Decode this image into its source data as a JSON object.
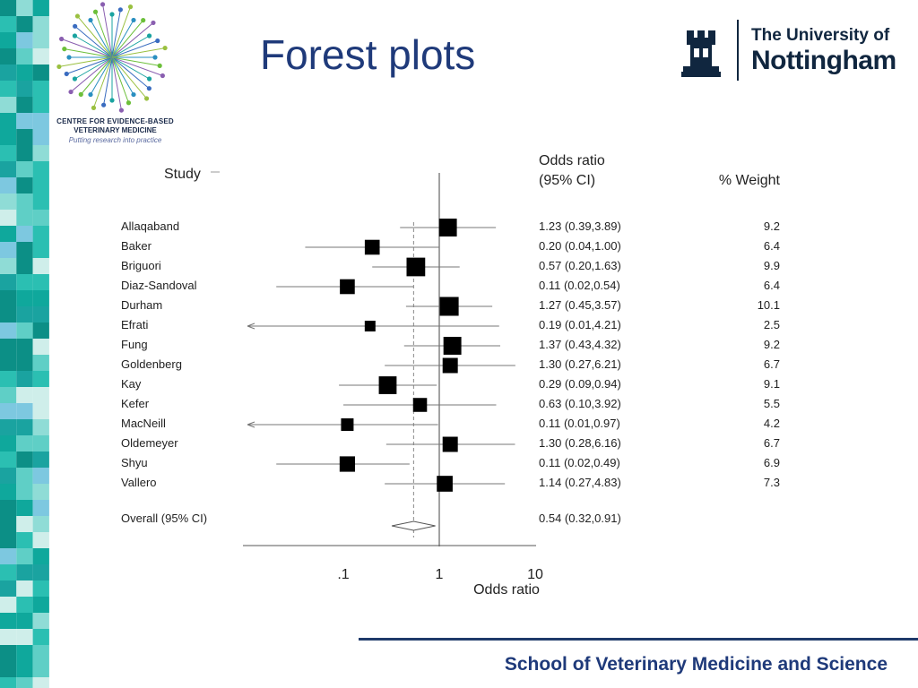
{
  "slide": {
    "title": "Forest plots",
    "footer": "School of Veterinary Medicine and Science"
  },
  "cebvm": {
    "line1": "CENTRE FOR EVIDENCE-BASED",
    "line2": "VETERINARY MEDICINE",
    "tagline": "Putting research into practice"
  },
  "university": {
    "line1": "The University of",
    "line2": "Nottingham"
  },
  "colors": {
    "title": "#1f3a7a",
    "stripe": [
      "#0fa89c",
      "#2bbfb2",
      "#5fcfc6",
      "#0c8f86",
      "#8fdcd6",
      "#1aa3a0",
      "#cfeeea",
      "#7dc8e0"
    ]
  },
  "chart_data": {
    "type": "forest",
    "header_study": "Study",
    "header_or_line1": "Odds ratio",
    "header_or_line2": "(95% CI)",
    "header_weight": "% Weight",
    "xlabel": "Odds ratio",
    "x_scale": "log",
    "xlim": [
      0.01,
      10
    ],
    "xticks": [
      {
        "value": 0.1,
        "label": ".1"
      },
      {
        "value": 1,
        "label": "1"
      },
      {
        "value": 10,
        "label": "10"
      }
    ],
    "null_line": 1,
    "studies": [
      {
        "name": "Allaqaband",
        "or": 1.23,
        "lo": 0.39,
        "hi": 3.89,
        "ci_text": "1.23 (0.39,3.89)",
        "weight": "9.2"
      },
      {
        "name": "Baker",
        "or": 0.2,
        "lo": 0.04,
        "hi": 1.0,
        "ci_text": "0.20 (0.04,1.00)",
        "weight": "6.4"
      },
      {
        "name": "Briguori",
        "or": 0.57,
        "lo": 0.2,
        "hi": 1.63,
        "ci_text": "0.57 (0.20,1.63)",
        "weight": "9.9"
      },
      {
        "name": "Diaz-Sandoval",
        "or": 0.11,
        "lo": 0.02,
        "hi": 0.54,
        "ci_text": "0.11 (0.02,0.54)",
        "weight": "6.4"
      },
      {
        "name": "Durham",
        "or": 1.27,
        "lo": 0.45,
        "hi": 3.57,
        "ci_text": "1.27 (0.45,3.57)",
        "weight": "10.1"
      },
      {
        "name": "Efrati",
        "or": 0.19,
        "lo": 0.01,
        "hi": 4.21,
        "ci_text": "0.19 (0.01,4.21)",
        "weight": "2.5"
      },
      {
        "name": "Fung",
        "or": 1.37,
        "lo": 0.43,
        "hi": 4.32,
        "ci_text": "1.37 (0.43,4.32)",
        "weight": "9.2"
      },
      {
        "name": "Goldenberg",
        "or": 1.3,
        "lo": 0.27,
        "hi": 6.21,
        "ci_text": "1.30 (0.27,6.21)",
        "weight": "6.7"
      },
      {
        "name": "Kay",
        "or": 0.29,
        "lo": 0.09,
        "hi": 0.94,
        "ci_text": "0.29 (0.09,0.94)",
        "weight": "9.1"
      },
      {
        "name": "Kefer",
        "or": 0.63,
        "lo": 0.1,
        "hi": 3.92,
        "ci_text": "0.63 (0.10,3.92)",
        "weight": "5.5"
      },
      {
        "name": "MacNeill",
        "or": 0.11,
        "lo": 0.01,
        "hi": 0.97,
        "ci_text": "0.11 (0.01,0.97)",
        "weight": "4.2"
      },
      {
        "name": "Oldemeyer",
        "or": 1.3,
        "lo": 0.28,
        "hi": 6.16,
        "ci_text": "1.30 (0.28,6.16)",
        "weight": "6.7"
      },
      {
        "name": "Shyu",
        "or": 0.11,
        "lo": 0.02,
        "hi": 0.49,
        "ci_text": "0.11 (0.02,0.49)",
        "weight": "6.9"
      },
      {
        "name": "Vallero",
        "or": 1.14,
        "lo": 0.27,
        "hi": 4.83,
        "ci_text": "1.14 (0.27,4.83)",
        "weight": "7.3"
      }
    ],
    "overall": {
      "name": "Overall (95% CI)",
      "or": 0.54,
      "lo": 0.32,
      "hi": 0.91,
      "ci_text": "0.54 (0.32,0.91)"
    }
  }
}
